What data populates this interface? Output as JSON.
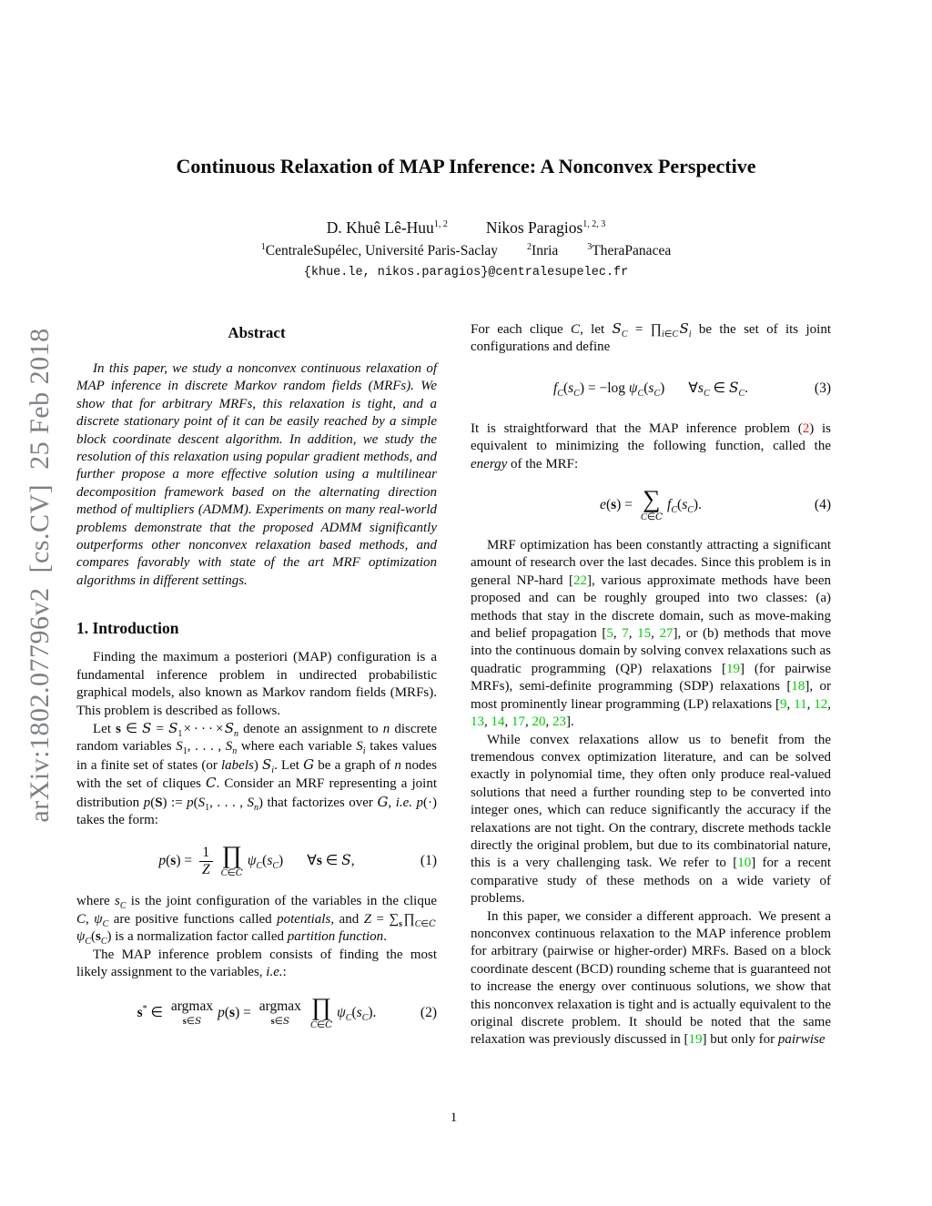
{
  "colors": {
    "citation_green": "#00cc00",
    "equation_ref_red": "#ee1511",
    "watermark_gray": "#7e8184",
    "text": "#0b0b0b"
  },
  "watermark": {
    "text": "arXiv:1802.07796v2  [cs.CV]  25 Feb 2018"
  },
  "header": {
    "title": "Continuous Relaxation of MAP Inference: A Nonconvex Perspective",
    "authors_html": "D. Khuê Lê-Huu<sup>1, 2</sup><span class='gap'></span>Nikos Paragios<sup>1, 2, 3</sup>",
    "affiliations_html": "<sup>1</sup>CentraleSupélec, Université Paris-Saclay<span class='gap2'></span><sup>2</sup>Inria<span class='gap2'></span><sup>3</sup>TheraPanacea",
    "email": "{khue.le, nikos.paragios}@centralesupelec.fr"
  },
  "left": {
    "abstract_heading": "Abstract",
    "abstract_html": "In this paper, we study a nonconvex continuous relaxation of MAP inference in discrete Markov random fields (MRFs). We show that for arbitrary MRFs, this relaxation is tight, and a discrete stationary point of it can be easily reached by a simple block coordinate descent algorithm. In addition, we study the resolution of this relaxation using popular gradient methods, and further propose a more effective solution using a multilinear decomposition framework based on the alternating direction method of multipliers (ADMM). Experiments on many real-world problems demonstrate that the proposed ADMM significantly outperforms other nonconvex relaxation based methods, and compares favorably with state of the art MRF optimization algorithms in different settings.",
    "intro_heading": "1. Introduction",
    "para1_html": "Finding the maximum a posteriori (MAP) configuration is a fundamental inference problem in undirected probabilistic graphical models, also known as Markov random fields (MRFs). This problem is described as follows.",
    "para2_html": "Let <b>s</b> ∈ <i class='cal'>S</i> = <i class='cal'>S</i><sub>1</sub>&hairsp;×&thinsp;·&thinsp;·&thinsp;·&thinsp;×&hairsp;<i class='cal'>S</i><sub><i>n</i></sub> denote an assignment to <i>n</i> discrete random variables <i>S</i><sub>1</sub>, . . . , <i>S</i><sub><i>n</i></sub> where each variable <i>S</i><sub><i>i</i></sub> takes values in a finite set of states (or <i>labels</i>) <i class='cal'>S</i><sub><i>i</i></sub>. Let <i class='cal'>G</i> be a graph of <i>n</i> nodes with the set of cliques <i class='cal'>C</i>. Consider an MRF representing a joint distribution <i>p</i>(<b>S</b>) := <i>p</i>(<i>S</i><sub>1</sub>, . . . , <i>S</i><sub><i>n</i></sub>) that factorizes over <i class='cal'>G</i>, <i>i.e. p</i>(·) takes the form:",
    "eq1": {
      "body_html": "<i>p</i>(<b>s</b>) = <span class='frac'><span class='num'>1</span><span class='den'><i>Z</i></span></span><span class='bigop'><span class='opsym'>∏</span><span class='opsub'><i>C</i>∈<i class='cal'>C</i></span></span><i>ψ</i><sub><i>C</i></sub>(<i>s</i><sub><i>C</i></sub>)<span class='qspace'></span>∀<b>s</b> ∈ <i class='cal'>S</i>,",
      "label": "(1)"
    },
    "para3_html": "where <i>s</i><sub><i>C</i></sub> is the joint configuration of the variables in the clique <i>C</i>, <i>ψ</i><sub><i>C</i></sub> are positive functions called <i>potentials</i>, and <i>Z</i> = ∑<sub><b>s</b></sub>&hairsp;∏<sub><i>C</i>∈<i class='cal'>C</i></sub>&hairsp;<i>ψ</i><sub><i>C</i></sub>(<b>s</b><sub><i>C</i></sub>) is a normalization factor called <i>partition function</i>.",
    "para4_html": "The MAP inference problem consists of finding the most likely assignment to the variables, <i>i.e.</i>:",
    "eq2": {
      "body_html": "<b>s</b><sup>*</sup> ∈ <span class='bigop'><span class='opname'>argmax</span><span class='opsub'><b>s</b>∈<i class='cal'>S</i></span></span><i>p</i>(<b>s</b>) = <span class='bigop'><span class='opname'>argmax</span><span class='opsub'><b>s</b>∈<i class='cal'>S</i></span></span><span class='bigop'><span class='opsym'>∏</span><span class='opsub'><i>C</i>∈<i class='cal'>C</i></span></span><i>ψ</i><sub><i>C</i></sub>(<i>s</i><sub><i>C</i></sub>).",
      "label": "(2)"
    }
  },
  "right": {
    "para1_html": "For each clique <i>C</i>, let <i class='cal'>S</i><sub><i>C</i></sub> = ∏<sub><i>i</i>∈<i>C</i></sub>&hairsp;<i class='cal'>S</i><sub><i>i</i></sub> be the set of its joint configurations and define",
    "eq3": {
      "body_html": "<i>f</i><sub><i>C</i></sub>(<i>s</i><sub><i>C</i></sub>) = −log <i>ψ</i><sub><i>C</i></sub>(<i>s</i><sub><i>C</i></sub>)<span class='qspace'></span>∀<i>s</i><sub><i>C</i></sub> ∈ <i class='cal'>S</i><sub><i>C</i></sub>.",
      "label": "(3)"
    },
    "para2_html": "It is straightforward that the MAP inference problem (<span class='ref'>2</span>) is equivalent to minimizing the following function, called the <i>energy</i> of the MRF:",
    "eq4": {
      "body_html": "<i>e</i>(<b>s</b>) = <span class='bigop'><span class='opsym'>∑</span><span class='opsub'><i>C</i>∈<i class='cal'>C</i></span></span><i>f</i><sub><i>C</i></sub>(<i>s</i><sub><i>C</i></sub>).",
      "label": "(4)"
    },
    "para3_html": "MRF optimization has been constantly attracting a significant amount of research over the last decades. Since this problem is in general NP-hard [<span class='cite'>22</span>], various approximate methods have been proposed and can be roughly grouped into two classes: (a) methods that stay in the discrete domain, such as move-making and belief propagation [<span class='cite'>5</span>, <span class='cite'>7</span>, <span class='cite'>15</span>, <span class='cite'>27</span>], or (b) methods that move into the continuous domain by solving convex relaxations such as quadratic programming (QP) relaxations [<span class='cite'>19</span>] (for pairwise MRFs), semi-definite programming (SDP) relaxations [<span class='cite'>18</span>], or most prominently linear programming (LP) relaxations [<span class='cite'>9</span>, <span class='cite'>11</span>, <span class='cite'>12</span>, <span class='cite'>13</span>, <span class='cite'>14</span>, <span class='cite'>17</span>, <span class='cite'>20</span>, <span class='cite'>23</span>].",
    "para4_html": "While convex relaxations allow us to benefit from the tremendous convex optimization literature, and can be solved exactly in polynomial time, they often only produce real-valued solutions that need a further rounding step to be converted into integer ones, which can reduce significantly the accuracy if the relaxations are not tight. On the contrary, discrete methods tackle directly the original problem, but due to its combinatorial nature, this is a very challenging task. We refer to [<span class='cite'>10</span>] for a recent comparative study of these methods on a wide variety of problems.",
    "para5_html": "In this paper, we consider a different approach.&ensp;We present a nonconvex continuous relaxation to the MAP inference problem for arbitrary (pairwise or higher-order) MRFs. Based on a block coordinate descent (BCD) rounding scheme that is guaranteed not to increase the energy over continuous solutions, we show that this nonconvex relaxation is tight and is actually equivalent to the original discrete problem. It should be noted that the same relaxation was previously discussed in [<span class='cite'>19</span>] but only for <i>pairwise</i>"
  },
  "footer": {
    "page_number": "1"
  }
}
